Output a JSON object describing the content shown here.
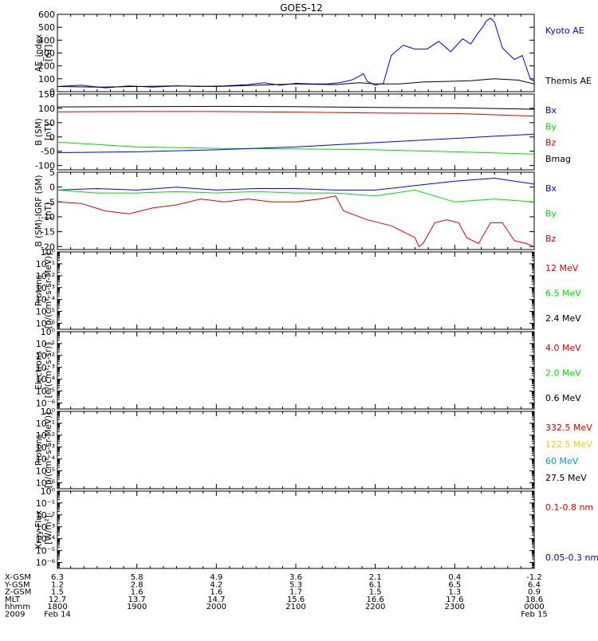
{
  "title": "GOES-12",
  "colors": {
    "black": "#000000",
    "blue": "#0000ff",
    "green": "#00e000",
    "red": "#e00000",
    "yellow": "#e8d000",
    "cyan": "#00a0e0"
  },
  "chart_data": [
    {
      "type": "line",
      "ylabel": [
        "AE_index",
        "[nT]"
      ],
      "ylim": [
        0,
        600
      ],
      "yticks": [
        0,
        100,
        200,
        300,
        400,
        500,
        600
      ],
      "ytick_labels": [
        "0",
        "100",
        "200",
        "300",
        "400",
        "500",
        "600"
      ],
      "x_hours": [
        18,
        24
      ],
      "legend": [
        {
          "name": "Kyoto AE",
          "color": "blue"
        },
        {
          "name": "Themis AE",
          "color": "black"
        }
      ],
      "series": [
        {
          "name": "Kyoto AE",
          "color": "blue",
          "x": [
            18.0,
            18.3,
            18.6,
            18.9,
            19.2,
            19.5,
            19.8,
            20.1,
            20.4,
            20.6,
            20.8,
            21.0,
            21.2,
            21.4,
            21.55,
            21.7,
            21.8,
            21.85,
            21.9,
            22.0,
            22.05,
            22.1,
            22.2,
            22.35,
            22.5,
            22.65,
            22.8,
            22.95,
            23.1,
            23.2,
            23.3,
            23.35,
            23.4,
            23.45,
            23.5,
            23.6,
            23.75,
            23.85,
            23.95,
            24.0
          ],
          "y": [
            40,
            50,
            30,
            45,
            35,
            45,
            40,
            45,
            55,
            70,
            50,
            65,
            60,
            60,
            70,
            90,
            120,
            140,
            80,
            50,
            60,
            60,
            280,
            360,
            330,
            330,
            390,
            310,
            410,
            370,
            460,
            500,
            550,
            570,
            540,
            340,
            250,
            280,
            100,
            80
          ]
        },
        {
          "name": "Themis AE",
          "color": "black",
          "x": [
            18.0,
            18.5,
            19.0,
            19.5,
            20.0,
            20.5,
            21.0,
            21.5,
            21.8,
            22.0,
            22.3,
            22.6,
            22.9,
            23.2,
            23.5,
            23.8,
            24.0
          ],
          "y": [
            40,
            35,
            40,
            45,
            40,
            50,
            60,
            55,
            70,
            60,
            60,
            75,
            80,
            85,
            100,
            90,
            60
          ]
        }
      ]
    },
    {
      "type": "line",
      "ylabel": [
        "B (SM)",
        "[nT]"
      ],
      "ylim": [
        -115,
        150
      ],
      "yticks": [
        -100,
        -50,
        0,
        50,
        100,
        150
      ],
      "ytick_labels": [
        "-100",
        "-50",
        "0",
        "50",
        "100",
        "150"
      ],
      "x_hours": [
        18,
        24
      ],
      "legend": [
        {
          "name": "Bx",
          "color": "blue"
        },
        {
          "name": "By",
          "color": "green"
        },
        {
          "name": "Bz",
          "color": "red"
        },
        {
          "name": "Bmag",
          "color": "black"
        }
      ],
      "series": [
        {
          "name": "Bmag",
          "color": "black",
          "x": [
            18,
            19,
            20,
            21,
            22,
            23,
            24
          ],
          "y": [
            105,
            106,
            107,
            106,
            103,
            102,
            97
          ]
        },
        {
          "name": "Bz",
          "color": "red",
          "x": [
            18,
            19,
            20,
            21,
            22,
            23,
            24
          ],
          "y": [
            88,
            89,
            89,
            87,
            84,
            82,
            73
          ]
        },
        {
          "name": "By",
          "color": "green",
          "x": [
            18,
            19,
            20,
            21,
            22,
            23,
            24
          ],
          "y": [
            -18,
            -35,
            -40,
            -42,
            -45,
            -52,
            -60
          ]
        },
        {
          "name": "Bx",
          "color": "blue",
          "x": [
            18,
            19,
            20,
            21,
            22,
            23,
            24
          ],
          "y": [
            -55,
            -52,
            -45,
            -35,
            -20,
            -5,
            10
          ]
        }
      ]
    },
    {
      "type": "line",
      "ylabel": [
        "B (SM)-IGRF (SM)",
        "[nT]"
      ],
      "ylim": [
        -21,
        5
      ],
      "yticks": [
        -20,
        -15,
        -10,
        -5,
        0,
        5
      ],
      "ytick_labels": [
        "-20",
        "-15",
        "-10",
        "-5",
        "0",
        "5"
      ],
      "x_hours": [
        18,
        24
      ],
      "legend": [
        {
          "name": "Bx",
          "color": "blue"
        },
        {
          "name": "By",
          "color": "green"
        },
        {
          "name": "Bz",
          "color": "red"
        }
      ],
      "series": [
        {
          "name": "Bx",
          "color": "blue",
          "x": [
            18.0,
            18.5,
            19.0,
            19.5,
            20.0,
            20.5,
            21.0,
            21.5,
            22.0,
            22.5,
            23.0,
            23.5,
            24.0
          ],
          "y": [
            -1,
            -0.5,
            -1,
            0,
            -1,
            -0.5,
            -0.5,
            -1,
            -1,
            0.5,
            2,
            3,
            1
          ]
        },
        {
          "name": "By",
          "color": "green",
          "x": [
            18.0,
            18.5,
            19.0,
            19.5,
            20.0,
            20.5,
            21.0,
            21.5,
            22.0,
            22.5,
            23.0,
            23.5,
            24.0
          ],
          "y": [
            -1,
            -2,
            -2,
            -1.5,
            -2,
            -1.5,
            -2,
            -2,
            -3,
            -1,
            -5,
            -4,
            -5
          ]
        },
        {
          "name": "Bz",
          "color": "red",
          "x": [
            18.0,
            18.3,
            18.6,
            18.9,
            19.2,
            19.5,
            19.8,
            20.1,
            20.4,
            20.7,
            21.0,
            21.3,
            21.5,
            21.6,
            21.9,
            22.2,
            22.5,
            22.55,
            22.6,
            22.75,
            22.9,
            23.05,
            23.15,
            23.3,
            23.45,
            23.6,
            23.75,
            23.9,
            24.0
          ],
          "y": [
            -5,
            -5.5,
            -8,
            -9,
            -7,
            -6,
            -4,
            -5,
            -4,
            -5,
            -5,
            -4,
            -3,
            -8,
            -11,
            -13,
            -17,
            -20,
            -19,
            -12,
            -11,
            -12,
            -17,
            -19,
            -12,
            -12,
            -18,
            -19,
            -20
          ]
        }
      ]
    },
    {
      "type": "line",
      "ylabel": [
        "Protons",
        "[p/(cm²-s-sr-MeV)]"
      ],
      "yscale": "log",
      "ylim": [
        -6.5,
        0
      ],
      "yticks": [
        0,
        -1,
        -2,
        -3,
        -4,
        -5,
        -6
      ],
      "ytick_labels": [
        "10⁰",
        "10⁻¹",
        "10⁻²",
        "10⁻³",
        "10⁻⁴",
        "10⁻⁵",
        "10⁻⁶"
      ],
      "x_hours": [
        18,
        24
      ],
      "legend": [
        {
          "name": "12 MeV",
          "color": "red"
        },
        {
          "name": "6.5 MeV",
          "color": "green"
        },
        {
          "name": "2.4 MeV",
          "color": "black"
        }
      ],
      "series": []
    },
    {
      "type": "line",
      "ylabel": [
        "Electrons",
        "[e/(cm²-s-sr)]"
      ],
      "yscale": "log",
      "ylim": [
        -6.5,
        0
      ],
      "yticks": [
        0,
        -1,
        -2,
        -3,
        -4,
        -5,
        -6
      ],
      "ytick_labels": [
        "10⁰",
        "10⁻¹",
        "10⁻²",
        "10⁻³",
        "10⁻⁴",
        "10⁻⁵",
        "10⁻⁶"
      ],
      "x_hours": [
        18,
        24
      ],
      "legend": [
        {
          "name": "4.0 MeV",
          "color": "red"
        },
        {
          "name": "2.0 MeV",
          "color": "green"
        },
        {
          "name": "0.6 MeV",
          "color": "black"
        }
      ],
      "series": []
    },
    {
      "type": "line",
      "ylabel": [
        "Protons",
        "[p/(cm²-s-sr-MeV)]"
      ],
      "yscale": "log",
      "ylim": [
        -6.5,
        0
      ],
      "yticks": [
        0,
        -1,
        -2,
        -3,
        -4,
        -5,
        -6
      ],
      "ytick_labels": [
        "10⁰",
        "10⁻¹",
        "10⁻²",
        "10⁻³",
        "10⁻⁴",
        "10⁻⁵",
        "10⁻⁶"
      ],
      "x_hours": [
        18,
        24
      ],
      "legend": [
        {
          "name": "332.5 MeV",
          "color": "red"
        },
        {
          "name": "122.5 MeV",
          "color": "yellow"
        },
        {
          "name": "60 MeV",
          "color": "cyan"
        },
        {
          "name": "27.5 MeV",
          "color": "black"
        }
      ],
      "series": []
    },
    {
      "type": "line",
      "ylabel": [
        "Xray Flux",
        "[W/m²]"
      ],
      "yscale": "log",
      "ylim": [
        -6.5,
        0
      ],
      "yticks": [
        0,
        -1,
        -2,
        -3,
        -4,
        -5,
        -6
      ],
      "ytick_labels": [
        "10⁰",
        "10⁻¹",
        "10⁻²",
        "10⁻³",
        "10⁻⁴",
        "10⁻⁵",
        "10⁻⁶"
      ],
      "x_hours": [
        18,
        24
      ],
      "legend": [
        {
          "name": "0.1-0.8 nm",
          "color": "red"
        },
        {
          "name": "0.05-0.3 nm",
          "color": "blue"
        }
      ],
      "series": []
    }
  ],
  "xaxis": {
    "tick_hours": [
      18,
      19,
      20,
      21,
      22,
      23,
      24
    ],
    "rows": [
      {
        "label": "X-GSM",
        "values": [
          "6.3",
          "5.8",
          "4.9",
          "3.6",
          "2.1",
          "0.4",
          "-1.2"
        ]
      },
      {
        "label": "Y-GSM",
        "values": [
          "1.2",
          "2.8",
          "4.2",
          "5.3",
          "6.1",
          "6.5",
          "6.4"
        ]
      },
      {
        "label": "Z-GSM",
        "values": [
          "1.5",
          "1.6",
          "1.6",
          "1.7",
          "1.5",
          "1.3",
          "0.9"
        ]
      },
      {
        "label": "MLT",
        "values": [
          "12.7",
          "13.7",
          "14.7",
          "15.6",
          "16.6",
          "17.6",
          "18.6"
        ]
      },
      {
        "label": "hhmm",
        "values": [
          "1800",
          "1900",
          "2000",
          "2100",
          "2200",
          "2300",
          "0000"
        ]
      },
      {
        "label": "2009",
        "values": [
          "Feb 14",
          "",
          "",
          "",
          "",
          "",
          "Feb 15"
        ]
      }
    ]
  }
}
